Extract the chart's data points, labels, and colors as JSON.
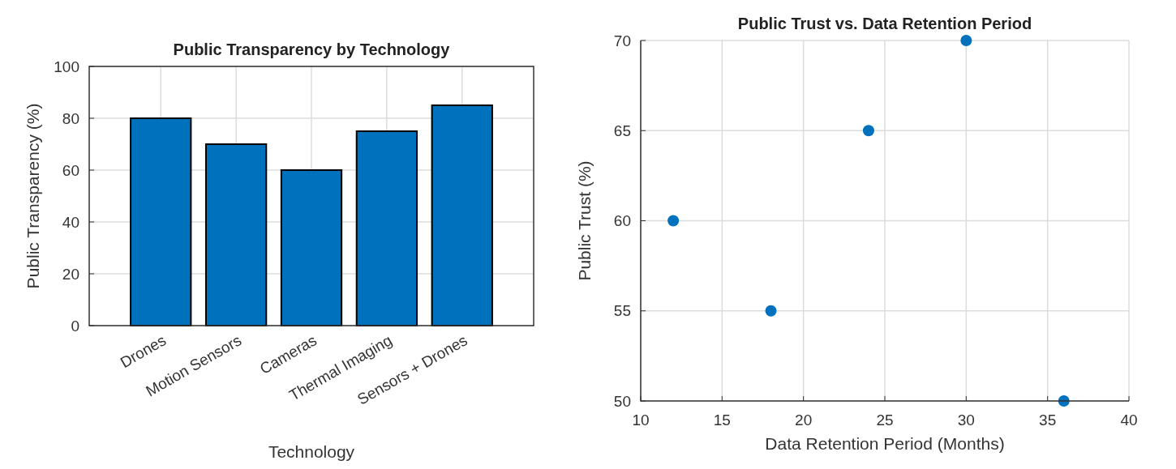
{
  "chart_data": [
    {
      "type": "bar",
      "title": "Public Transparency by Technology",
      "xlabel": "Technology",
      "ylabel": "Public Transparency (%)",
      "categories": [
        "Drones",
        "Motion Sensors",
        "Cameras",
        "Thermal Imaging",
        "Sensors + Drones"
      ],
      "values": [
        80,
        70,
        60,
        75,
        85
      ],
      "color": "#0072bd",
      "ylim": [
        0,
        100
      ],
      "yticks": [
        0,
        20,
        40,
        60,
        80,
        100
      ],
      "grid": true
    },
    {
      "type": "scatter",
      "title": "Public Trust vs. Data Retention Period",
      "xlabel": "Data Retention Period (Months)",
      "ylabel": "Public Trust (%)",
      "x": [
        12,
        18,
        24,
        30,
        36
      ],
      "values": [
        60,
        55,
        65,
        70,
        50
      ],
      "color": "#0072bd",
      "xlim": [
        10,
        40
      ],
      "xticks": [
        10,
        15,
        20,
        25,
        30,
        35,
        40
      ],
      "ylim": [
        50,
        70
      ],
      "yticks": [
        50,
        55,
        60,
        65,
        70
      ],
      "grid": true,
      "marker": "circle"
    }
  ]
}
